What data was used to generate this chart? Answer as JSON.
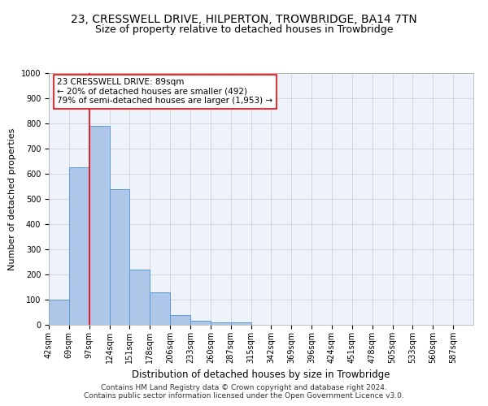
{
  "title": "23, CRESSWELL DRIVE, HILPERTON, TROWBRIDGE, BA14 7TN",
  "subtitle": "Size of property relative to detached houses in Trowbridge",
  "xlabel": "Distribution of detached houses by size in Trowbridge",
  "ylabel": "Number of detached properties",
  "categories": [
    "42sqm",
    "69sqm",
    "97sqm",
    "124sqm",
    "151sqm",
    "178sqm",
    "206sqm",
    "233sqm",
    "260sqm",
    "287sqm",
    "315sqm",
    "342sqm",
    "369sqm",
    "396sqm",
    "424sqm",
    "451sqm",
    "478sqm",
    "505sqm",
    "533sqm",
    "560sqm",
    "587sqm"
  ],
  "values": [
    100,
    625,
    790,
    540,
    220,
    130,
    40,
    15,
    10,
    10,
    0,
    0,
    0,
    0,
    0,
    0,
    0,
    0,
    0,
    0,
    0
  ],
  "bar_color": "#aec6e8",
  "bar_edge_color": "#5b9bd5",
  "red_line_bin": 2,
  "annotation_text": "23 CRESSWELL DRIVE: 89sqm\n← 20% of detached houses are smaller (492)\n79% of semi-detached houses are larger (1,953) →",
  "ylim": [
    0,
    1000
  ],
  "yticks": [
    0,
    100,
    200,
    300,
    400,
    500,
    600,
    700,
    800,
    900,
    1000
  ],
  "background_color": "#eef2fa",
  "footer_text": "Contains HM Land Registry data © Crown copyright and database right 2024.\nContains public sector information licensed under the Open Government Licence v3.0.",
  "title_fontsize": 10,
  "subtitle_fontsize": 9,
  "xlabel_fontsize": 8.5,
  "ylabel_fontsize": 8,
  "tick_fontsize": 7,
  "annotation_fontsize": 7.5,
  "footer_fontsize": 6.5
}
